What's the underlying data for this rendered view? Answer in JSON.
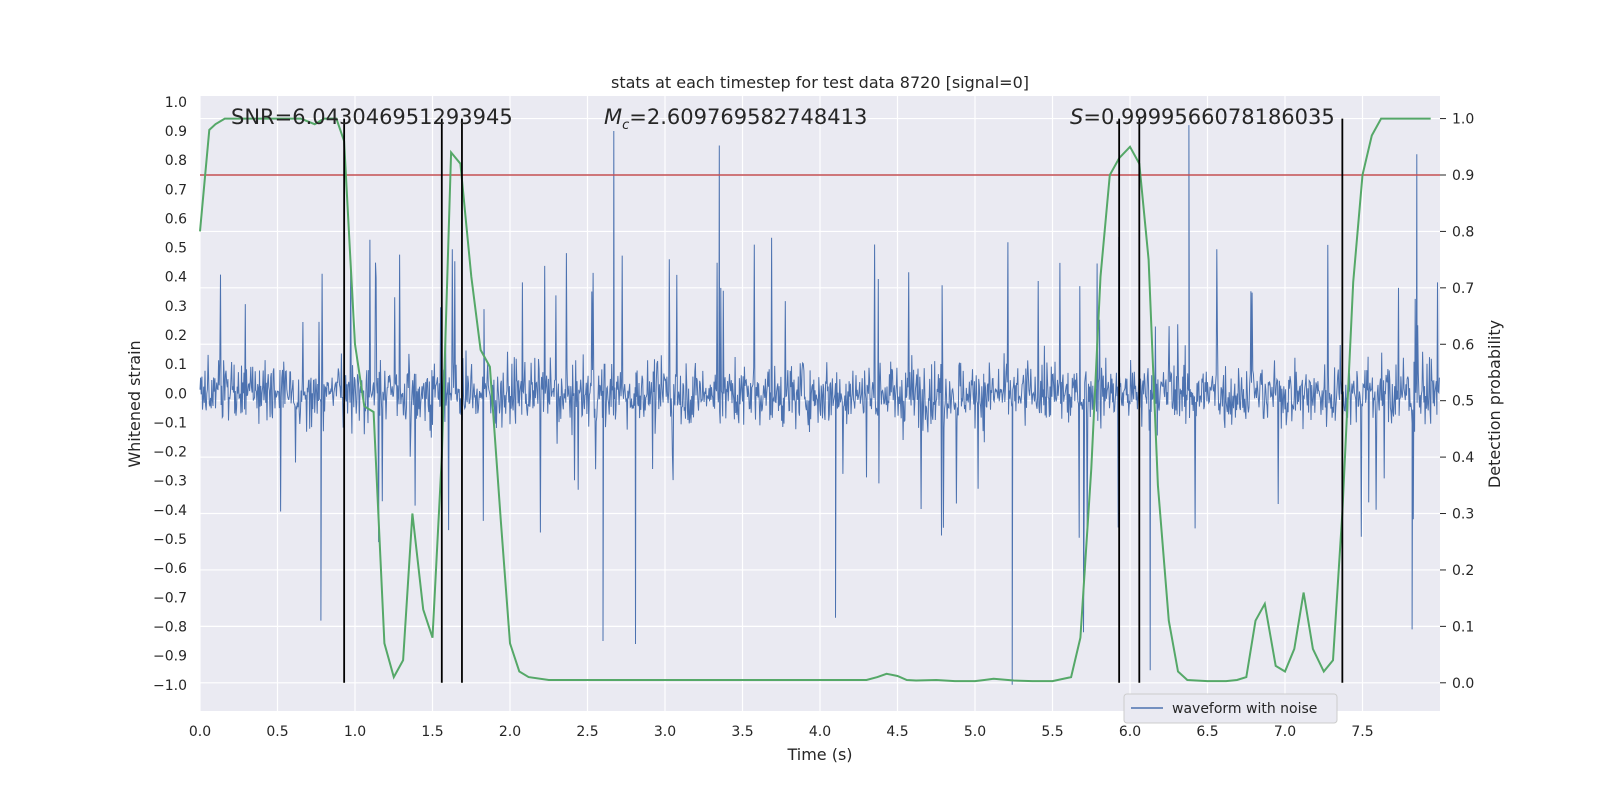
{
  "chart_data": {
    "type": "line",
    "title": "stats at each timestep for test data 8720 [signal=0]",
    "xlabel": "Time (s)",
    "ylabel_left": "Whitened strain",
    "ylabel_right": "Detection probability",
    "xlim": [
      0.0,
      8.0
    ],
    "ylim_left": [
      -1.09,
      1.02
    ],
    "ylim_right": [
      -0.05,
      1.04
    ],
    "x_ticks": [
      0.0,
      0.5,
      1.0,
      1.5,
      2.0,
      2.5,
      3.0,
      3.5,
      4.0,
      4.5,
      5.0,
      5.5,
      6.0,
      6.5,
      7.0,
      7.5
    ],
    "x_tick_labels": [
      "0.0",
      "0.5",
      "1.0",
      "1.5",
      "2.0",
      "2.5",
      "3.0",
      "3.5",
      "4.0",
      "4.5",
      "5.0",
      "5.5",
      "6.0",
      "6.5",
      "7.0",
      "7.5"
    ],
    "y_left_ticks": [
      1.0,
      0.9,
      0.8,
      0.7,
      0.6,
      0.5,
      0.4,
      0.3,
      0.2,
      0.1,
      0.0,
      -0.1,
      -0.2,
      -0.3,
      -0.4,
      -0.5,
      -0.6,
      -0.7,
      -0.8,
      -0.9,
      -1.0
    ],
    "y_left_tick_labels": [
      "1.0",
      "0.9",
      "0.8",
      "0.7",
      "0.6",
      "0.5",
      "0.4",
      "0.3",
      "0.2",
      "0.1",
      "0.0",
      "−0.1",
      "−0.2",
      "−0.3",
      "−0.4",
      "−0.5",
      "−0.6",
      "−0.7",
      "−0.8",
      "−0.9",
      "−1.0"
    ],
    "y_right_ticks": [
      1.0,
      0.9,
      0.8,
      0.7,
      0.6,
      0.5,
      0.4,
      0.3,
      0.2,
      0.1,
      0.0
    ],
    "y_right_tick_labels": [
      "1.0",
      "0.9",
      "0.8",
      "0.7",
      "0.6",
      "0.5",
      "0.4",
      "0.3",
      "0.2",
      "0.1",
      "0.0"
    ],
    "annotations": {
      "snr": "SNR=6.043046951293945",
      "mc_symbol": "M",
      "mc_subscript": "c",
      "mc_value": "=2.609769582748413",
      "s_symbol": "S",
      "s_value": "=0.9999566078186035"
    },
    "threshold": {
      "value": 0.9,
      "axis": "right",
      "color": "#c44e52"
    },
    "vertical_lines_x": [
      0.93,
      1.56,
      1.69,
      5.93,
      6.06,
      7.37
    ],
    "vertical_line_range_right": [
      0.0,
      1.0
    ],
    "series": [
      {
        "name": "waveform with noise",
        "axis": "left",
        "kind": "noise-waveform",
        "color": "#4c72b0",
        "sample_interval_s": 0.004,
        "typical_envelope": [
          -0.45,
          0.5
        ],
        "extreme_range": [
          -1.0,
          0.92
        ],
        "notable_peaks": [
          {
            "x": 2.67,
            "y": 0.9
          },
          {
            "x": 3.35,
            "y": 0.85
          },
          {
            "x": 6.38,
            "y": 0.92
          },
          {
            "x": 7.85,
            "y": 0.82
          },
          {
            "x": 5.24,
            "y": -1.0
          },
          {
            "x": 2.81,
            "y": -0.86
          },
          {
            "x": 2.6,
            "y": -0.85
          },
          {
            "x": 6.13,
            "y": -0.95
          },
          {
            "x": 0.78,
            "y": -0.78
          },
          {
            "x": 4.1,
            "y": -0.77
          },
          {
            "x": 5.7,
            "y": -0.82
          },
          {
            "x": 7.82,
            "y": -0.81
          }
        ]
      },
      {
        "name": "detection probability",
        "axis": "right",
        "color": "#55a868",
        "x": [
          0.0,
          0.06,
          0.1,
          0.16,
          0.4,
          0.65,
          0.74,
          0.8,
          0.88,
          0.93,
          0.97,
          1.0,
          1.06,
          1.12,
          1.19,
          1.25,
          1.31,
          1.37,
          1.44,
          1.5,
          1.56,
          1.62,
          1.68,
          1.75,
          1.81,
          1.87,
          1.94,
          2.0,
          2.06,
          2.12,
          2.25,
          2.5,
          2.75,
          3.0,
          3.5,
          4.0,
          4.3,
          4.37,
          4.43,
          4.5,
          4.56,
          4.62,
          4.75,
          4.87,
          5.0,
          5.06,
          5.12,
          5.25,
          5.37,
          5.5,
          5.62,
          5.68,
          5.75,
          5.81,
          5.87,
          5.93,
          6.0,
          6.06,
          6.12,
          6.18,
          6.25,
          6.31,
          6.37,
          6.5,
          6.62,
          6.69,
          6.75,
          6.81,
          6.87,
          6.94,
          7.0,
          7.06,
          7.12,
          7.18,
          7.25,
          7.31,
          7.37,
          7.44,
          7.5,
          7.56,
          7.62,
          7.75,
          7.94
        ],
        "y": [
          0.8,
          0.98,
          0.99,
          1.0,
          1.0,
          1.0,
          0.99,
          1.0,
          1.0,
          0.96,
          0.75,
          0.6,
          0.49,
          0.48,
          0.07,
          0.01,
          0.04,
          0.3,
          0.13,
          0.08,
          0.4,
          0.94,
          0.92,
          0.72,
          0.59,
          0.56,
          0.29,
          0.07,
          0.02,
          0.01,
          0.005,
          0.005,
          0.005,
          0.005,
          0.005,
          0.005,
          0.005,
          0.01,
          0.016,
          0.012,
          0.005,
          0.004,
          0.005,
          0.003,
          0.003,
          0.005,
          0.007,
          0.004,
          0.003,
          0.003,
          0.01,
          0.08,
          0.38,
          0.72,
          0.9,
          0.93,
          0.95,
          0.92,
          0.75,
          0.35,
          0.11,
          0.02,
          0.005,
          0.003,
          0.003,
          0.005,
          0.01,
          0.11,
          0.14,
          0.03,
          0.02,
          0.06,
          0.16,
          0.06,
          0.02,
          0.04,
          0.3,
          0.71,
          0.9,
          0.97,
          1.0,
          1.0,
          1.0
        ]
      }
    ],
    "legend": {
      "position": "lower-right",
      "entries": [
        "waveform with noise"
      ]
    }
  }
}
